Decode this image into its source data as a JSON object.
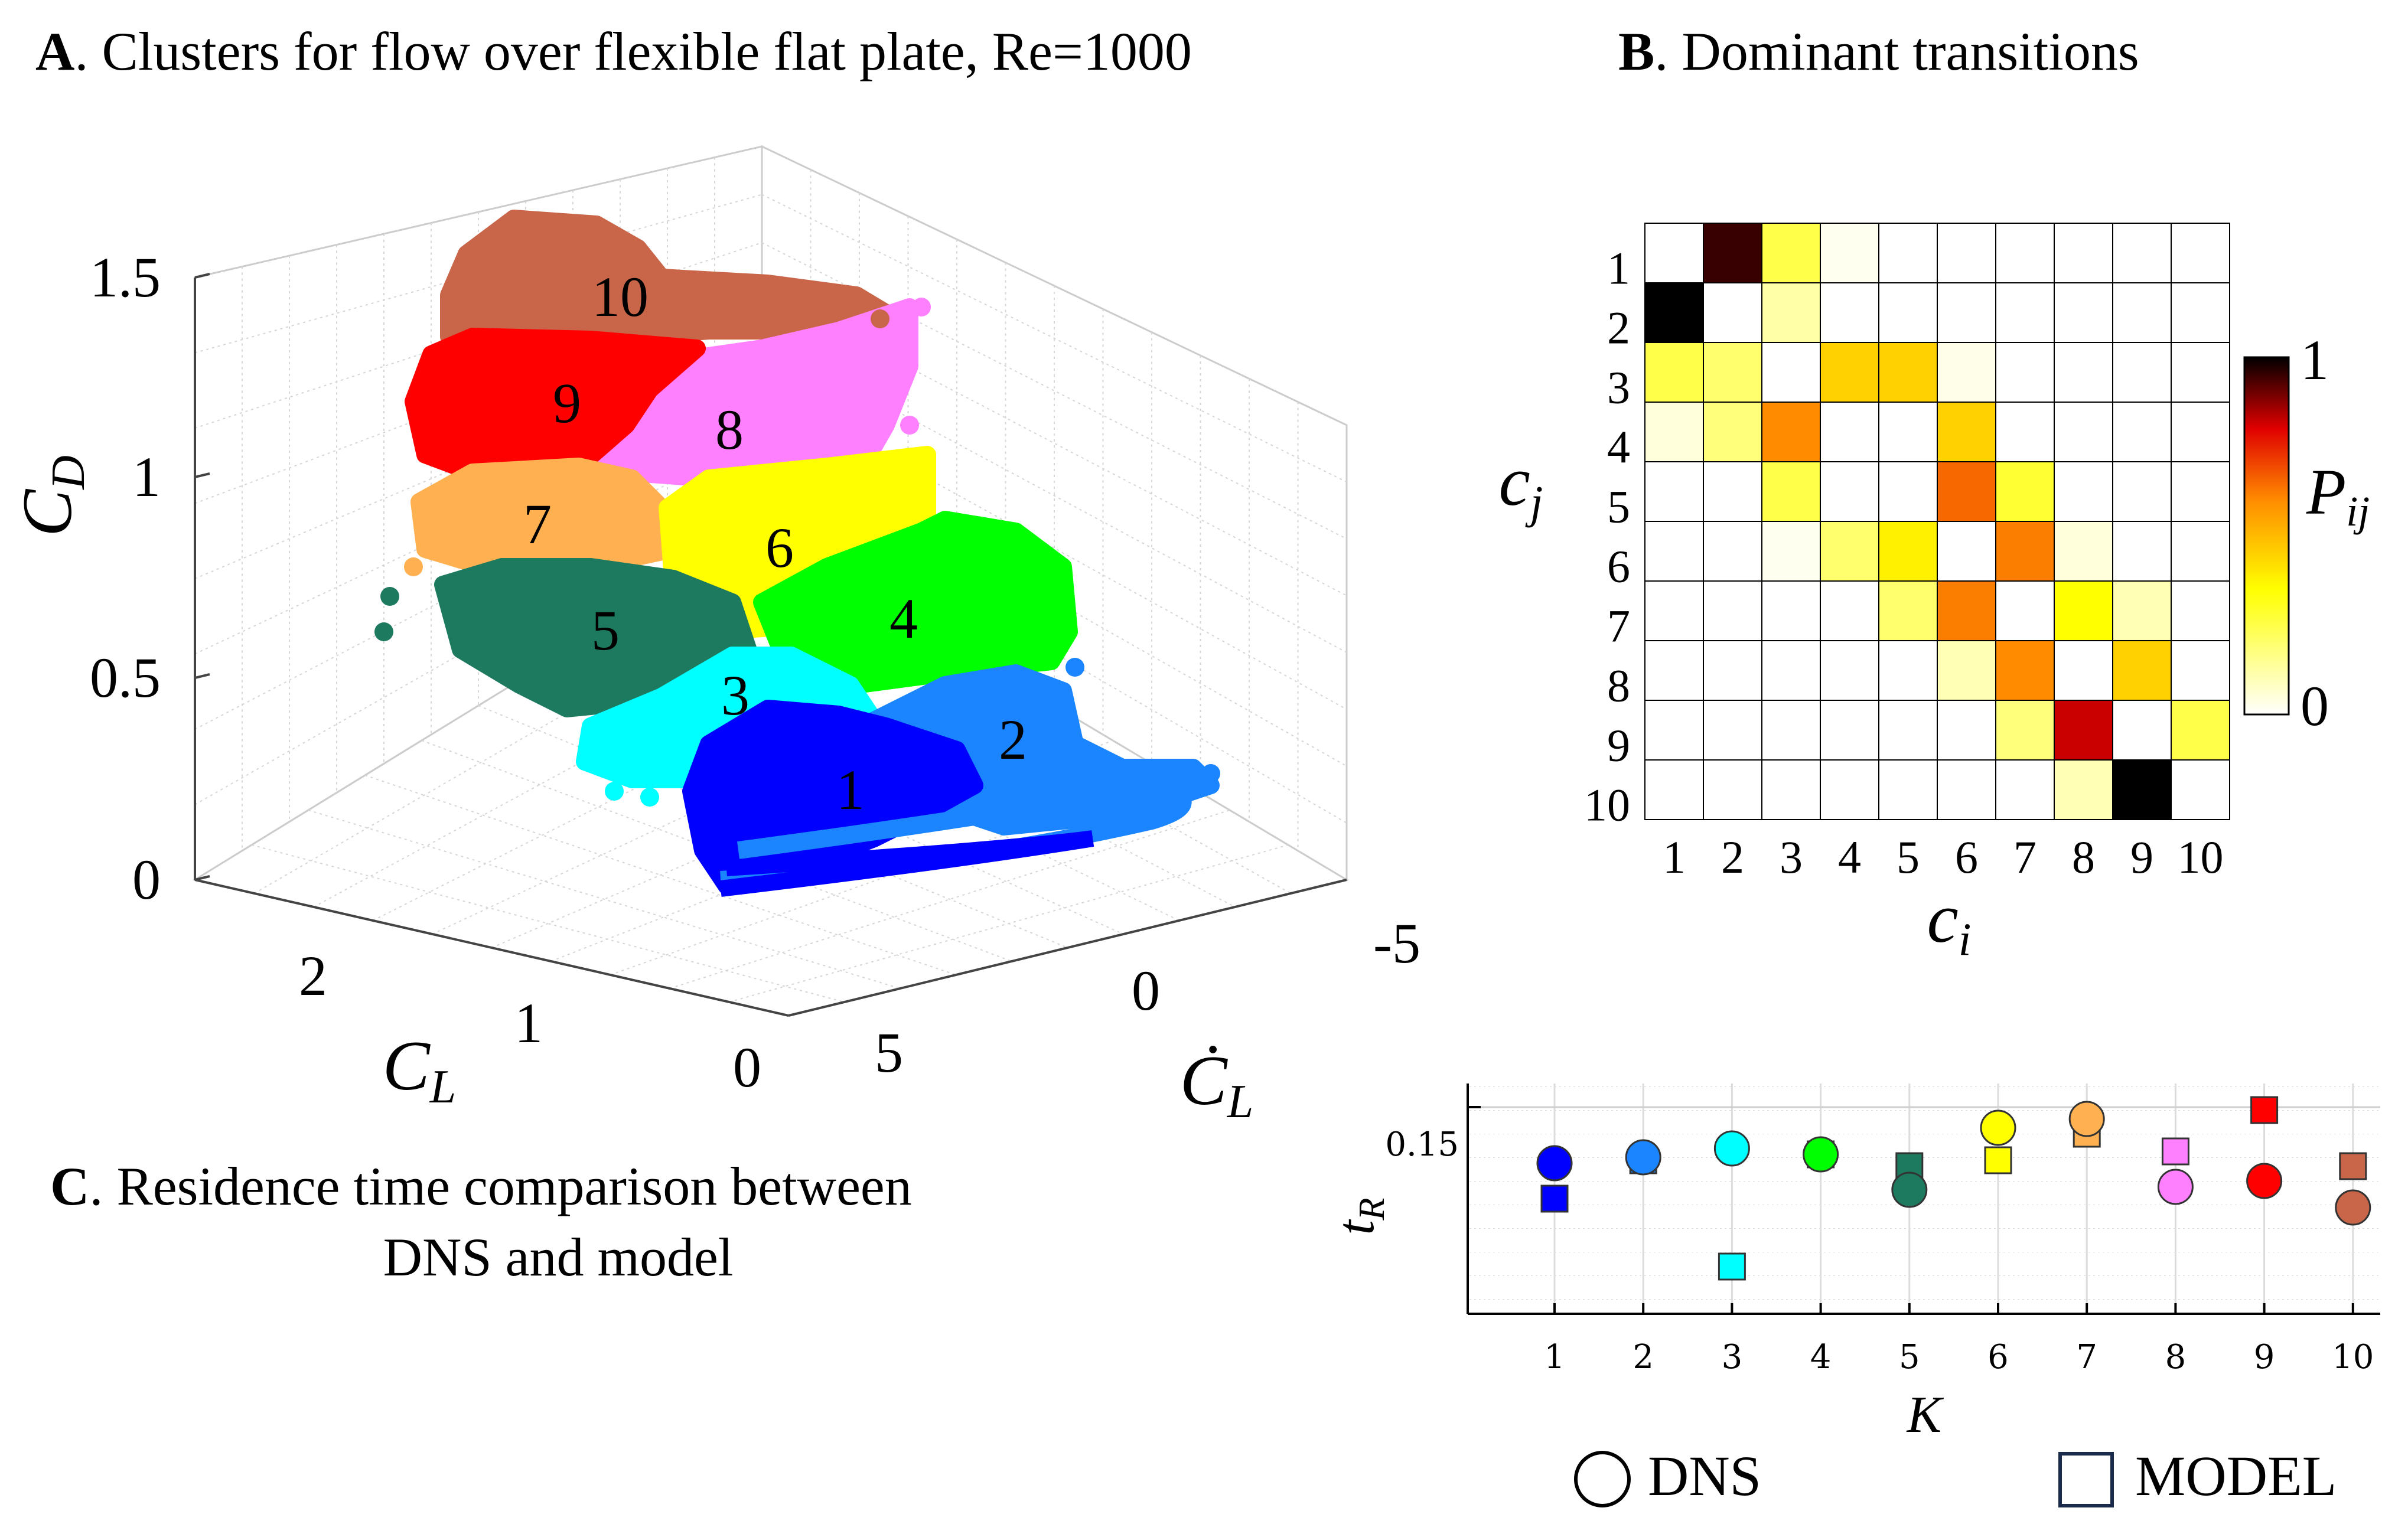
{
  "panels": {
    "a_letter": "A",
    "a_title": ". Clusters for  flow over flexible flat plate, Re=1000",
    "b_letter": "B",
    "b_title": ". Dominant transitions",
    "c_letter": "C",
    "c_title_line1": ".  Residence time comparison between",
    "c_title_line2": "DNS and model"
  },
  "chart_data": [
    {
      "type": "scatter3d",
      "title": "Clusters for  flow over flexible flat plate, Re=1000",
      "axes": {
        "z": {
          "label": "C",
          "label_sub": "D",
          "ticks": [
            "0",
            "0.5",
            "1",
            "1.5"
          ],
          "range": [
            0,
            1.5
          ]
        },
        "x": {
          "label": "C",
          "label_sub": "L",
          "ticks": [
            "2",
            "1",
            "0"
          ]
        },
        "y": {
          "label": "Ċ",
          "label_sub": "L",
          "ticks": [
            "5",
            "0",
            "-5"
          ]
        }
      },
      "clusters": [
        {
          "label": "1",
          "color": "#0000ff"
        },
        {
          "label": "2",
          "color": "#1a85ff"
        },
        {
          "label": "3",
          "color": "#00ffff"
        },
        {
          "label": "4",
          "color": "#00ff00"
        },
        {
          "label": "5",
          "color": "#1d7a5e"
        },
        {
          "label": "6",
          "color": "#ffff00"
        },
        {
          "label": "7",
          "color": "#ffb050"
        },
        {
          "label": "8",
          "color": "#ff80ff"
        },
        {
          "label": "9",
          "color": "#ff0000"
        },
        {
          "label": "10",
          "color": "#c9664a"
        }
      ]
    },
    {
      "type": "heatmap",
      "title": "Dominant transitions",
      "xlabel": "c",
      "xlabel_sub": "i",
      "ylabel": "c",
      "ylabel_sub": "j",
      "x_categories": [
        "1",
        "2",
        "3",
        "4",
        "5",
        "6",
        "7",
        "8",
        "9",
        "10"
      ],
      "y_categories": [
        "1",
        "2",
        "3",
        "4",
        "5",
        "6",
        "7",
        "8",
        "9",
        "10"
      ],
      "values": [
        [
          0,
          0.95,
          0.25,
          0.02,
          0,
          0,
          0,
          0,
          0,
          0
        ],
        [
          1.0,
          0,
          0.12,
          0,
          0,
          0,
          0,
          0,
          0,
          0
        ],
        [
          0.25,
          0.2,
          0,
          0.45,
          0.45,
          0.03,
          0,
          0,
          0,
          0
        ],
        [
          0.05,
          0.18,
          0.6,
          0,
          0,
          0.45,
          0,
          0,
          0,
          0
        ],
        [
          0,
          0,
          0.25,
          0,
          0,
          0.65,
          0.28,
          0,
          0,
          0
        ],
        [
          0,
          0,
          0.02,
          0.2,
          0.38,
          0,
          0.62,
          0.05,
          0,
          0
        ],
        [
          0,
          0,
          0,
          0,
          0.2,
          0.62,
          0,
          0.35,
          0.1,
          0
        ],
        [
          0,
          0,
          0,
          0,
          0,
          0.1,
          0.6,
          0,
          0.45,
          0
        ],
        [
          0,
          0,
          0,
          0,
          0,
          0,
          0.18,
          0.82,
          0,
          0.25
        ],
        [
          0,
          0,
          0,
          0,
          0,
          0,
          0,
          0.1,
          1.0,
          0
        ]
      ],
      "colorbar": {
        "label": "P",
        "label_sub": "ij",
        "min_label": "0",
        "max_label": "1",
        "range": [
          0,
          1
        ]
      }
    },
    {
      "type": "scatter",
      "title": "Residence time comparison between DNS and model",
      "xlabel": "K",
      "ylabel": "t",
      "ylabel_sub": "R",
      "ytick_label": "0.15",
      "categories": [
        "1",
        "2",
        "3",
        "4",
        "5",
        "6",
        "7",
        "8",
        "9",
        "10"
      ],
      "ylim": [
        0.08,
        0.158
      ],
      "series": [
        {
          "name": "DNS",
          "marker": "circle",
          "values": [
            0.131,
            0.133,
            0.136,
            0.134,
            0.122,
            0.143,
            0.146,
            0.123,
            0.125,
            0.116
          ]
        },
        {
          "name": "MODEL",
          "marker": "square",
          "values": [
            0.119,
            0.132,
            0.096,
            0.134,
            0.13,
            0.132,
            0.141,
            0.135,
            0.149,
            0.13
          ]
        }
      ],
      "colors": [
        "#0000ff",
        "#1a85ff",
        "#00ffff",
        "#00ff00",
        "#1d7a5e",
        "#ffff00",
        "#ffb050",
        "#ff80ff",
        "#ff0000",
        "#c9664a"
      ],
      "legend": {
        "dns": "DNS",
        "model": "MODEL"
      }
    }
  ]
}
